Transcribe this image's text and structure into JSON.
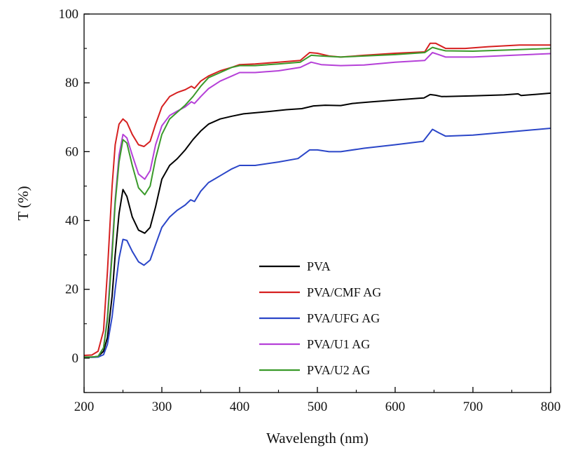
{
  "chart_data": {
    "type": "line",
    "title": "",
    "xlabel": "Wavelength (nm)",
    "ylabel": "T (%)",
    "xlim": [
      200,
      800
    ],
    "ylim": [
      -10,
      100
    ],
    "xticks": [
      200,
      300,
      400,
      500,
      600,
      700,
      800
    ],
    "yticks": [
      0,
      20,
      40,
      60,
      80,
      100
    ],
    "grid": false,
    "legend_position": "bottom-center",
    "series": [
      {
        "name": "PVA",
        "color": "#000000",
        "points": [
          [
            200,
            0.3
          ],
          [
            210,
            0.3
          ],
          [
            218,
            0.5
          ],
          [
            225,
            2
          ],
          [
            230,
            6
          ],
          [
            236,
            18
          ],
          [
            240,
            30
          ],
          [
            245,
            42
          ],
          [
            250,
            49
          ],
          [
            255,
            47
          ],
          [
            262,
            41
          ],
          [
            270,
            37.2
          ],
          [
            278,
            36.3
          ],
          [
            285,
            38
          ],
          [
            292,
            44
          ],
          [
            300,
            52
          ],
          [
            310,
            56
          ],
          [
            320,
            58
          ],
          [
            330,
            60.5
          ],
          [
            340,
            63.5
          ],
          [
            350,
            66
          ],
          [
            360,
            68
          ],
          [
            375,
            69.5
          ],
          [
            390,
            70.3
          ],
          [
            405,
            71
          ],
          [
            430,
            71.5
          ],
          [
            460,
            72.2
          ],
          [
            480,
            72.5
          ],
          [
            495,
            73.3
          ],
          [
            510,
            73.5
          ],
          [
            530,
            73.4
          ],
          [
            545,
            74
          ],
          [
            570,
            74.5
          ],
          [
            600,
            75
          ],
          [
            630,
            75.5
          ],
          [
            637,
            75.6
          ],
          [
            645,
            76.6
          ],
          [
            652,
            76.4
          ],
          [
            660,
            76
          ],
          [
            700,
            76.2
          ],
          [
            740,
            76.5
          ],
          [
            758,
            76.8
          ],
          [
            762,
            76.3
          ],
          [
            800,
            77
          ]
        ]
      },
      {
        "name": "PVA/CMF AG",
        "color": "#d62020",
        "points": [
          [
            200,
            0.8
          ],
          [
            210,
            0.9
          ],
          [
            218,
            2
          ],
          [
            225,
            8
          ],
          [
            230,
            25
          ],
          [
            236,
            50
          ],
          [
            240,
            62
          ],
          [
            245,
            68
          ],
          [
            250,
            69.5
          ],
          [
            255,
            68.5
          ],
          [
            262,
            65
          ],
          [
            270,
            62
          ],
          [
            277,
            61.5
          ],
          [
            285,
            63
          ],
          [
            292,
            68
          ],
          [
            300,
            73
          ],
          [
            310,
            76
          ],
          [
            320,
            77.2
          ],
          [
            330,
            78
          ],
          [
            338,
            79
          ],
          [
            342,
            78.4
          ],
          [
            350,
            80.5
          ],
          [
            360,
            82
          ],
          [
            375,
            83.5
          ],
          [
            390,
            84.5
          ],
          [
            400,
            85.3
          ],
          [
            420,
            85.5
          ],
          [
            450,
            86
          ],
          [
            478,
            86.5
          ],
          [
            490,
            88.8
          ],
          [
            500,
            88.6
          ],
          [
            515,
            87.8
          ],
          [
            530,
            87.5
          ],
          [
            560,
            88
          ],
          [
            600,
            88.6
          ],
          [
            638,
            89
          ],
          [
            645,
            91.5
          ],
          [
            652,
            91.5
          ],
          [
            665,
            90
          ],
          [
            690,
            90
          ],
          [
            720,
            90.5
          ],
          [
            760,
            91
          ],
          [
            800,
            91
          ]
        ]
      },
      {
        "name": "PVA/UFG AG",
        "color": "#2b46c8",
        "points": [
          [
            200,
            0.2
          ],
          [
            210,
            0.2
          ],
          [
            218,
            0.3
          ],
          [
            225,
            1
          ],
          [
            230,
            4
          ],
          [
            236,
            12
          ],
          [
            240,
            20
          ],
          [
            245,
            29
          ],
          [
            250,
            34.5
          ],
          [
            255,
            34.2
          ],
          [
            262,
            31
          ],
          [
            270,
            28
          ],
          [
            277,
            27
          ],
          [
            285,
            28.5
          ],
          [
            292,
            33
          ],
          [
            300,
            38
          ],
          [
            310,
            41
          ],
          [
            320,
            43
          ],
          [
            330,
            44.5
          ],
          [
            337,
            46
          ],
          [
            342,
            45.5
          ],
          [
            350,
            48.5
          ],
          [
            360,
            51
          ],
          [
            375,
            53
          ],
          [
            390,
            55
          ],
          [
            400,
            56
          ],
          [
            420,
            56
          ],
          [
            450,
            57
          ],
          [
            475,
            58
          ],
          [
            490,
            60.5
          ],
          [
            500,
            60.5
          ],
          [
            515,
            60
          ],
          [
            530,
            60
          ],
          [
            560,
            61
          ],
          [
            600,
            62
          ],
          [
            636,
            63
          ],
          [
            648,
            66.5
          ],
          [
            656,
            65.5
          ],
          [
            665,
            64.5
          ],
          [
            700,
            64.8
          ],
          [
            750,
            65.8
          ],
          [
            800,
            66.8
          ]
        ]
      },
      {
        "name": "PVA/U1 AG",
        "color": "#b540d8",
        "points": [
          [
            200,
            0.3
          ],
          [
            210,
            0.3
          ],
          [
            218,
            0.5
          ],
          [
            225,
            3
          ],
          [
            230,
            12
          ],
          [
            236,
            32
          ],
          [
            240,
            46
          ],
          [
            245,
            59
          ],
          [
            250,
            65
          ],
          [
            255,
            64
          ],
          [
            262,
            59
          ],
          [
            270,
            53.5
          ],
          [
            278,
            52
          ],
          [
            285,
            54.5
          ],
          [
            292,
            62
          ],
          [
            300,
            67.5
          ],
          [
            310,
            70.5
          ],
          [
            320,
            71.8
          ],
          [
            330,
            73
          ],
          [
            338,
            74.5
          ],
          [
            342,
            74
          ],
          [
            350,
            76
          ],
          [
            360,
            78.3
          ],
          [
            375,
            80.5
          ],
          [
            390,
            82
          ],
          [
            400,
            83
          ],
          [
            420,
            83
          ],
          [
            450,
            83.5
          ],
          [
            478,
            84.5
          ],
          [
            492,
            86
          ],
          [
            505,
            85.3
          ],
          [
            530,
            85
          ],
          [
            560,
            85.2
          ],
          [
            600,
            86
          ],
          [
            638,
            86.5
          ],
          [
            648,
            88.8
          ],
          [
            656,
            88.2
          ],
          [
            665,
            87.5
          ],
          [
            700,
            87.5
          ],
          [
            750,
            88
          ],
          [
            800,
            88.5
          ]
        ]
      },
      {
        "name": "PVA/U2 AG",
        "color": "#3a9a2a",
        "points": [
          [
            200,
            0.3
          ],
          [
            210,
            0.3
          ],
          [
            218,
            0.5
          ],
          [
            225,
            3
          ],
          [
            230,
            11
          ],
          [
            236,
            30
          ],
          [
            240,
            45
          ],
          [
            245,
            57
          ],
          [
            250,
            63.5
          ],
          [
            255,
            62.5
          ],
          [
            262,
            56
          ],
          [
            270,
            49.5
          ],
          [
            278,
            47.5
          ],
          [
            285,
            50
          ],
          [
            292,
            58
          ],
          [
            300,
            65
          ],
          [
            310,
            69.5
          ],
          [
            320,
            71.5
          ],
          [
            330,
            73.5
          ],
          [
            340,
            76
          ],
          [
            350,
            79
          ],
          [
            360,
            81.5
          ],
          [
            375,
            83
          ],
          [
            390,
            84.5
          ],
          [
            400,
            85
          ],
          [
            420,
            85
          ],
          [
            450,
            85.5
          ],
          [
            478,
            86
          ],
          [
            492,
            88
          ],
          [
            505,
            87.8
          ],
          [
            530,
            87.5
          ],
          [
            560,
            87.8
          ],
          [
            600,
            88.2
          ],
          [
            638,
            88.8
          ],
          [
            648,
            90.3
          ],
          [
            656,
            89.8
          ],
          [
            665,
            89.3
          ],
          [
            700,
            89.2
          ],
          [
            750,
            89.6
          ],
          [
            800,
            90
          ]
        ]
      }
    ]
  }
}
